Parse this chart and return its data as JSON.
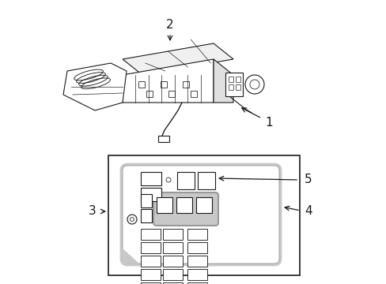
{
  "bg_color": "#ffffff",
  "line_color": "#1a1a1a",
  "gray_color": "#999999",
  "light_gray": "#c8c8c8",
  "fig_w": 4.89,
  "fig_h": 3.6,
  "dpi": 100
}
